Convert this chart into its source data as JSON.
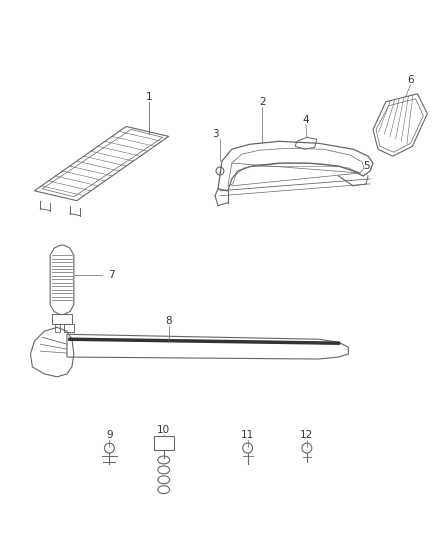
{
  "background_color": "#ffffff",
  "figure_width": 4.38,
  "figure_height": 5.33,
  "dpi": 100,
  "line_color": "#666666",
  "text_color": "#333333",
  "font_size": 7.5
}
